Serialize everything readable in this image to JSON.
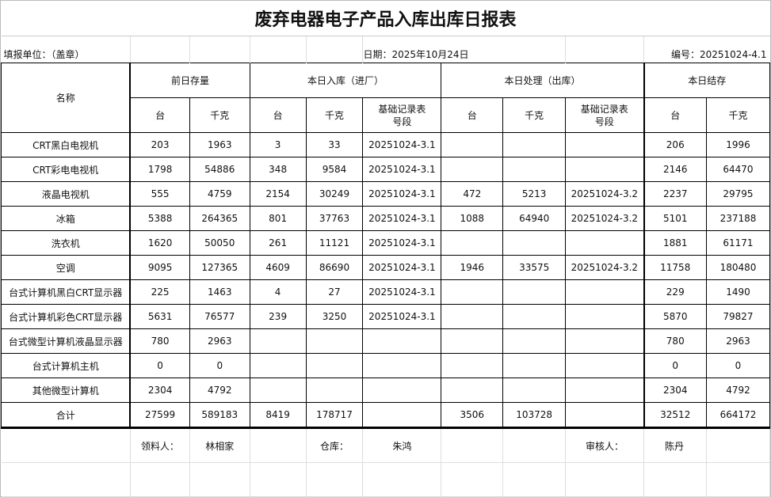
{
  "title": "废弃电器电子产品入库出库日报表",
  "info": {
    "unit": "填报单位：（盖章）",
    "date": "日期：2025年10月24日",
    "number": "编号：20251024-4.1"
  },
  "headers": {
    "name": "名称",
    "prev_stock": "前日存量",
    "in": "本日入库（进厂）",
    "out": "本日处理（出库）",
    "balance": "本日结存",
    "units": "台",
    "kg": "千克",
    "record": "基础记录表号段"
  },
  "rows": [
    {
      "name": "CRT黑白电视机",
      "prev_units": "203",
      "prev_kg": "1963",
      "in_units": "3",
      "in_kg": "33",
      "in_record": "20251024-3.1",
      "out_units": "",
      "out_kg": "",
      "out_record": "",
      "bal_units": "206",
      "bal_kg": "1996"
    },
    {
      "name": "CRT彩电电视机",
      "prev_units": "1798",
      "prev_kg": "54886",
      "in_units": "348",
      "in_kg": "9584",
      "in_record": "20251024-3.1",
      "out_units": "",
      "out_kg": "",
      "out_record": "",
      "bal_units": "2146",
      "bal_kg": "64470"
    },
    {
      "name": "液晶电视机",
      "prev_units": "555",
      "prev_kg": "4759",
      "in_units": "2154",
      "in_kg": "30249",
      "in_record": "20251024-3.1",
      "out_units": "472",
      "out_kg": "5213",
      "out_record": "20251024-3.2",
      "bal_units": "2237",
      "bal_kg": "29795"
    },
    {
      "name": "冰箱",
      "prev_units": "5388",
      "prev_kg": "264365",
      "in_units": "801",
      "in_kg": "37763",
      "in_record": "20251024-3.1",
      "out_units": "1088",
      "out_kg": "64940",
      "out_record": "20251024-3.2",
      "bal_units": "5101",
      "bal_kg": "237188"
    },
    {
      "name": "洗衣机",
      "prev_units": "1620",
      "prev_kg": "50050",
      "in_units": "261",
      "in_kg": "11121",
      "in_record": "20251024-3.1",
      "out_units": "",
      "out_kg": "",
      "out_record": "",
      "bal_units": "1881",
      "bal_kg": "61171"
    },
    {
      "name": "空调",
      "prev_units": "9095",
      "prev_kg": "127365",
      "in_units": "4609",
      "in_kg": "86690",
      "in_record": "20251024-3.1",
      "out_units": "1946",
      "out_kg": "33575",
      "out_record": "20251024-3.2",
      "bal_units": "11758",
      "bal_kg": "180480"
    },
    {
      "name": "台式计算机黑白CRT显示器",
      "prev_units": "225",
      "prev_kg": "1463",
      "in_units": "4",
      "in_kg": "27",
      "in_record": "20251024-3.1",
      "out_units": "",
      "out_kg": "",
      "out_record": "",
      "bal_units": "229",
      "bal_kg": "1490"
    },
    {
      "name": "台式计算机彩色CRT显示器",
      "prev_units": "5631",
      "prev_kg": "76577",
      "in_units": "239",
      "in_kg": "3250",
      "in_record": "20251024-3.1",
      "out_units": "",
      "out_kg": "",
      "out_record": "",
      "bal_units": "5870",
      "bal_kg": "79827"
    },
    {
      "name": "台式微型计算机液晶显示器",
      "prev_units": "780",
      "prev_kg": "2963",
      "in_units": "",
      "in_kg": "",
      "in_record": "",
      "out_units": "",
      "out_kg": "",
      "out_record": "",
      "bal_units": "780",
      "bal_kg": "2963"
    },
    {
      "name": "台式计算机主机",
      "prev_units": "0",
      "prev_kg": "0",
      "in_units": "",
      "in_kg": "",
      "in_record": "",
      "out_units": "",
      "out_kg": "",
      "out_record": "",
      "bal_units": "0",
      "bal_kg": "0"
    },
    {
      "name": "其他微型计算机",
      "prev_units": "2304",
      "prev_kg": "4792",
      "in_units": "",
      "in_kg": "",
      "in_record": "",
      "out_units": "",
      "out_kg": "",
      "out_record": "",
      "bal_units": "2304",
      "bal_kg": "4792"
    },
    {
      "name": "合计",
      "prev_units": "27599",
      "prev_kg": "589183",
      "in_units": "8419",
      "in_kg": "178717",
      "in_record": "",
      "out_units": "3506",
      "out_kg": "103728",
      "out_record": "",
      "bal_units": "32512",
      "bal_kg": "664172"
    }
  ],
  "footer": {
    "receiver_label": "领料人：",
    "receiver": "林相家",
    "warehouse_label": "仓库：",
    "warehouse": "朱鸿",
    "reviewer_label": "审核人：",
    "reviewer": "陈丹"
  }
}
